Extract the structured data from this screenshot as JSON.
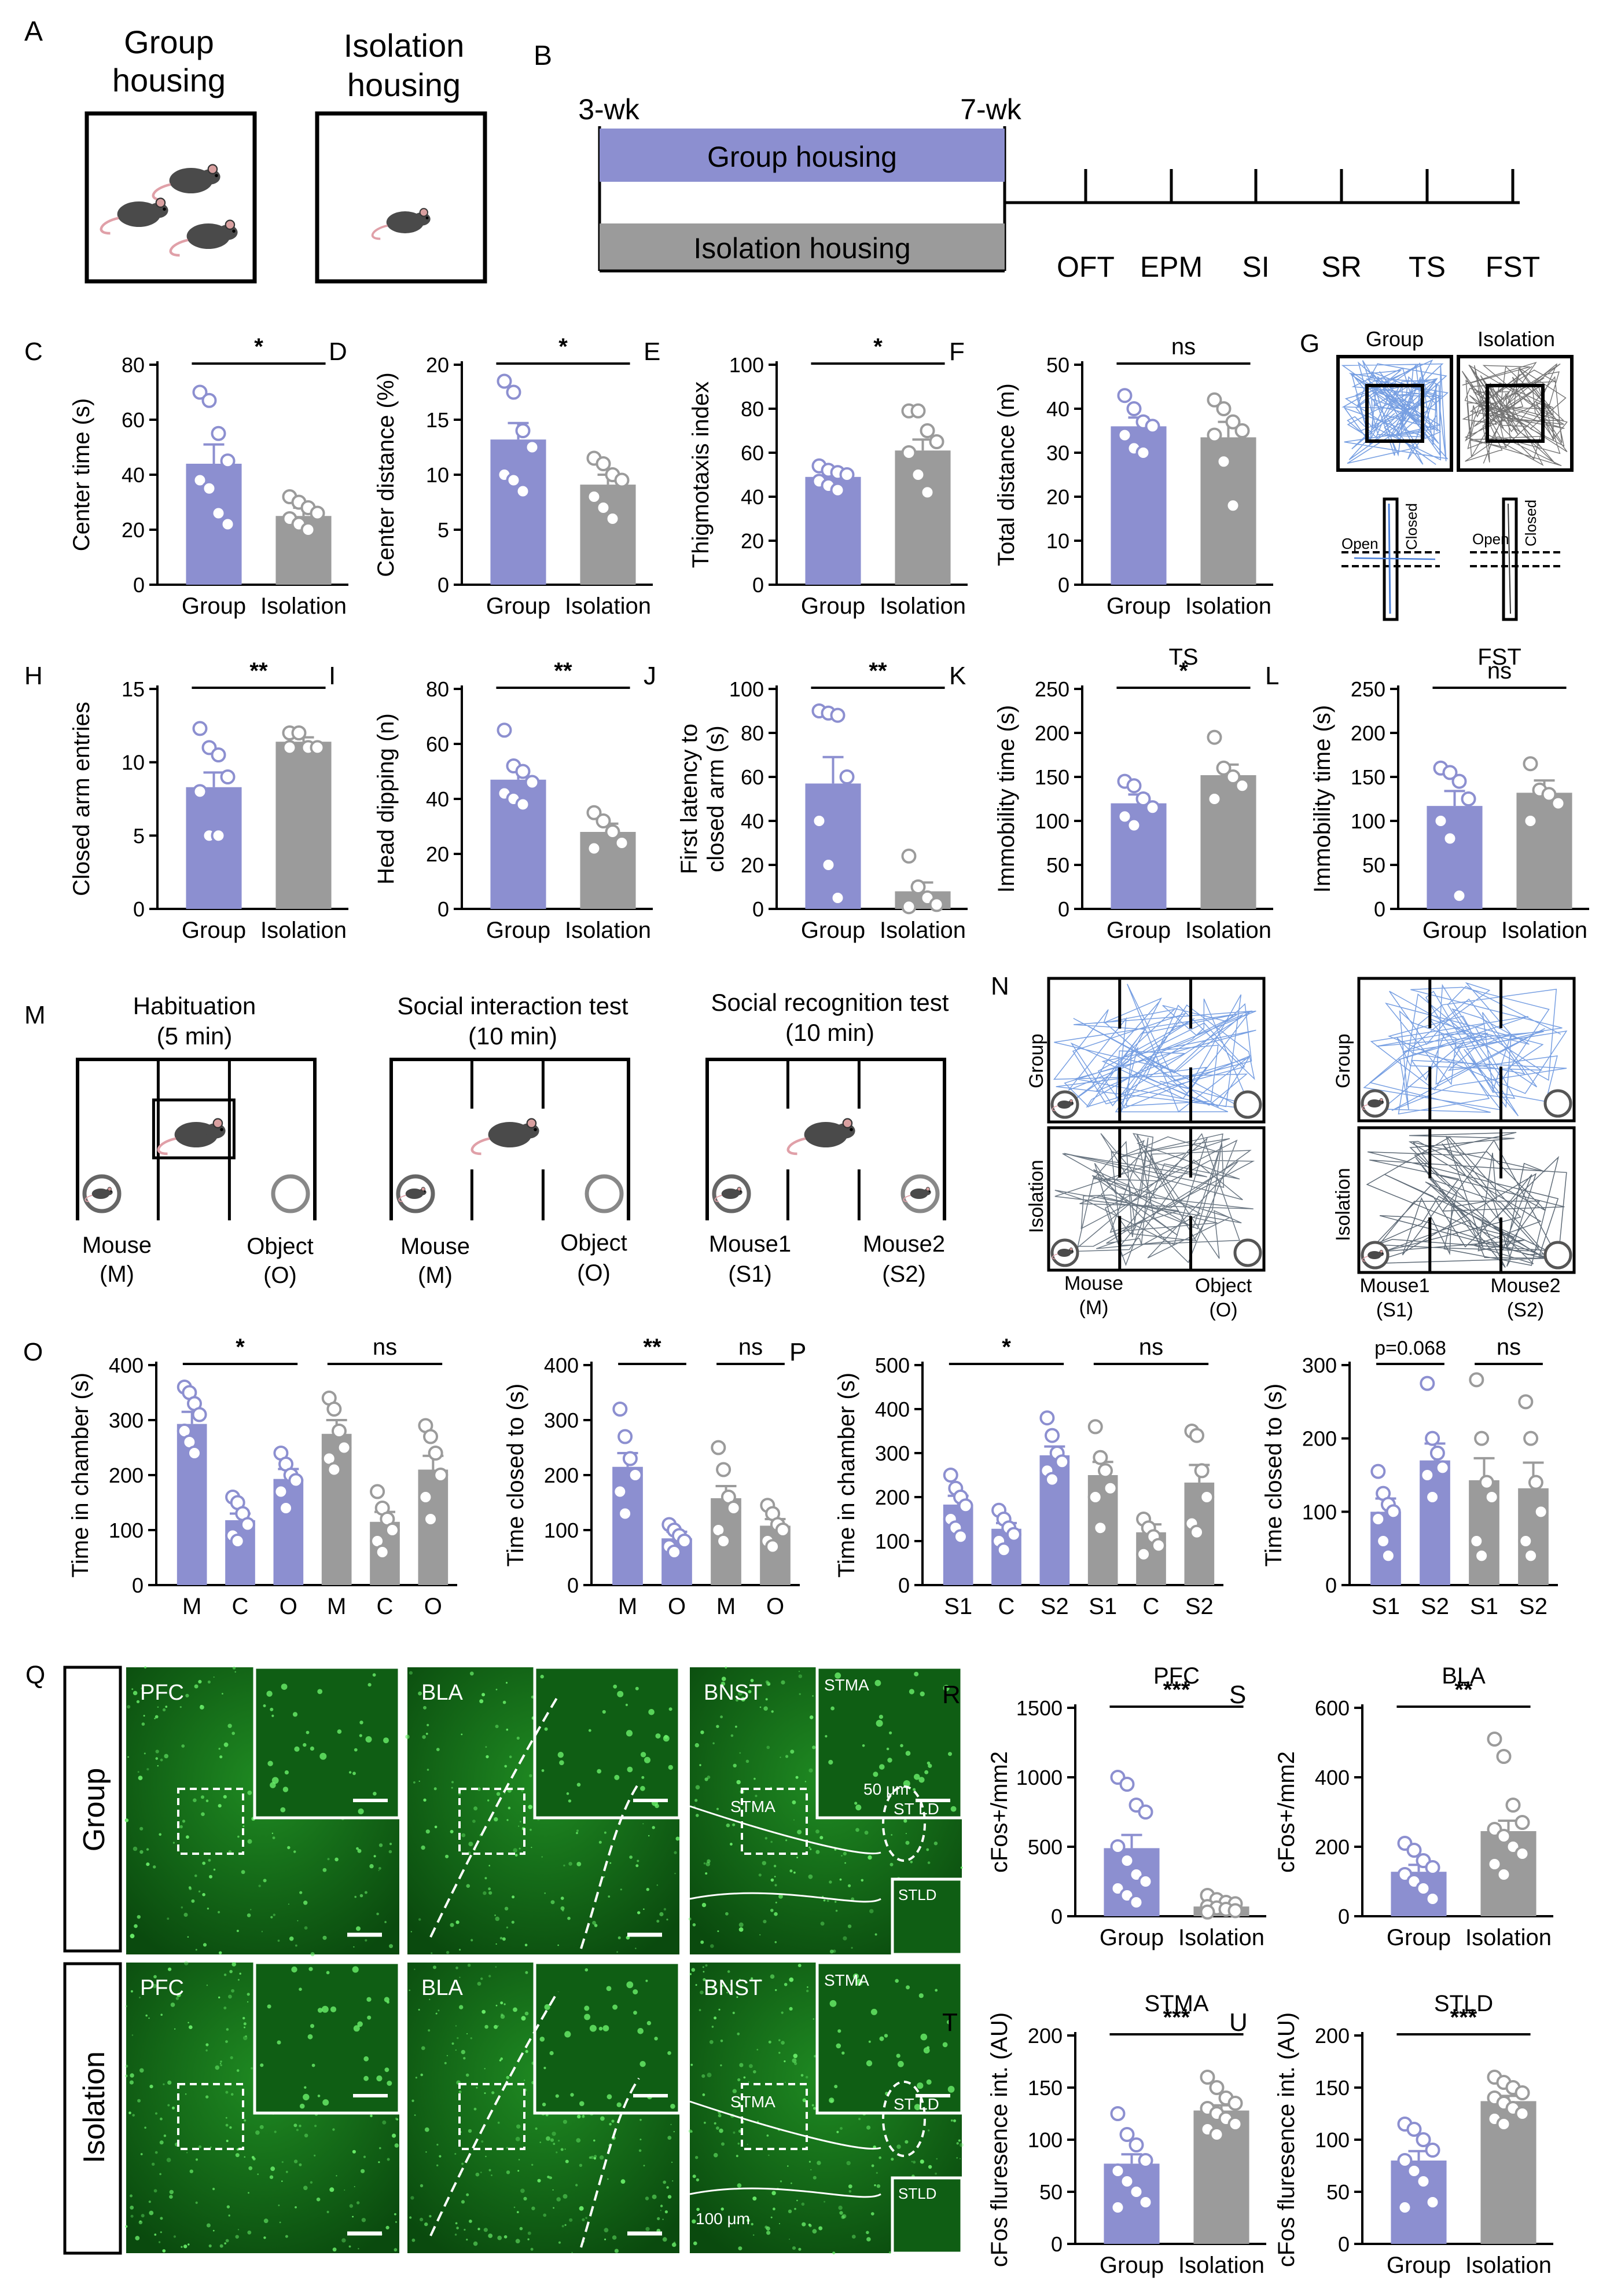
{
  "colors": {
    "group": "#8c8fd0",
    "isolation": "#9b9b9b",
    "group_dot": "#8c8fd0",
    "isolation_dot": "#9b9b9b",
    "micro_bg": "#0f5e14",
    "micro_cell": "#6af06a"
  },
  "panel_A": {
    "letter": "A",
    "group_label": [
      "Group",
      "housing"
    ],
    "isolation_label": [
      "Isolation",
      "housing"
    ]
  },
  "panel_B": {
    "letter": "B",
    "start": "3-wk",
    "end": "7-wk",
    "group_bar": "Group housing",
    "isolation_bar": "Isolation housing",
    "tests": [
      "OFT",
      "EPM",
      "SI",
      "SR",
      "TS",
      "FST"
    ]
  },
  "panel_G": {
    "letter": "G",
    "group": "Group",
    "isolation": "Isolation",
    "open": "Open",
    "closed": "Closed"
  },
  "panel_M": {
    "letter": "M",
    "titles": [
      [
        "Habituation",
        "(5 min)"
      ],
      [
        "Social interaction test",
        "(10 min)"
      ],
      [
        "Social recognition test",
        "(10 min)"
      ]
    ],
    "labels": [
      [
        "Mouse",
        "(M)"
      ],
      [
        "Object",
        "(O)"
      ],
      [
        "Mouse",
        "(M)"
      ],
      [
        "Object",
        "(O)"
      ],
      [
        "Mouse1",
        "(S1)"
      ],
      [
        "Mouse2",
        "(S2)"
      ]
    ]
  },
  "panel_N": {
    "letter": "N",
    "group": "Group",
    "isolation": "Isolation",
    "left_labels": [
      [
        "Mouse",
        "(M)"
      ],
      [
        "Object",
        "(O)"
      ]
    ],
    "right_labels": [
      [
        "Mouse1",
        "(S1)"
      ],
      [
        "Mouse2",
        "(S2)"
      ]
    ]
  },
  "panel_Q": {
    "letter": "Q",
    "rows": [
      "Group",
      "Isolation"
    ],
    "regions": [
      "PFC",
      "BLA",
      "BNST"
    ],
    "sub": [
      "STMA",
      "ST LD",
      "STLD"
    ],
    "scale_small": "50 μm",
    "scale_large": "100 μm"
  },
  "chart_data": [
    {
      "id": "C",
      "type": "bar",
      "categories": [
        "Group",
        "Isolation"
      ],
      "values": [
        44,
        25
      ],
      "ylabel": "Center time (s)",
      "ylim": [
        0,
        80
      ],
      "yticks": [
        0,
        20,
        40,
        60,
        80
      ],
      "sig": "*",
      "errors": [
        7,
        3
      ],
      "points": [
        [
          70,
          67,
          55,
          45,
          38,
          35,
          26,
          22
        ],
        [
          32,
          30,
          28,
          26,
          24,
          22,
          20
        ]
      ]
    },
    {
      "id": "D",
      "type": "bar",
      "categories": [
        "Group",
        "Isolation"
      ],
      "values": [
        13.2,
        9.1
      ],
      "ylabel": "Center distance (%)",
      "ylim": [
        0,
        20
      ],
      "yticks": [
        0,
        5,
        10,
        15,
        20
      ],
      "sig": "*",
      "errors": [
        1.5,
        0.9
      ],
      "points": [
        [
          18.5,
          17.5,
          14,
          12.5,
          10,
          9.5,
          8.5
        ],
        [
          11.5,
          11,
          10,
          9.5,
          8,
          7,
          6
        ]
      ]
    },
    {
      "id": "E",
      "type": "bar",
      "categories": [
        "Group",
        "Isolation"
      ],
      "values": [
        49,
        61
      ],
      "ylabel": "Thigmotaxis index",
      "ylim": [
        0,
        100
      ],
      "yticks": [
        0,
        20,
        40,
        60,
        80,
        100
      ],
      "sig": "*",
      "errors": [
        2,
        5
      ],
      "points": [
        [
          54,
          52,
          51,
          50,
          47,
          45,
          43
        ],
        [
          79,
          79,
          70,
          65,
          60,
          50,
          42
        ]
      ]
    },
    {
      "id": "F",
      "type": "bar",
      "categories": [
        "Group",
        "Isolation"
      ],
      "values": [
        36,
        33.5
      ],
      "ylabel": "Total distance (m)",
      "ylim": [
        0,
        50
      ],
      "yticks": [
        0,
        10,
        20,
        30,
        40,
        50
      ],
      "sig": "ns",
      "errors": [
        2,
        3.5
      ],
      "points": [
        [
          43,
          40,
          37,
          36,
          34,
          31,
          30
        ],
        [
          42,
          40,
          37,
          35,
          34,
          28,
          18
        ]
      ]
    },
    {
      "id": "H",
      "type": "bar",
      "categories": [
        "Group",
        "Isolation"
      ],
      "values": [
        8.3,
        11.4
      ],
      "ylabel": "Closed arm entries",
      "ylim": [
        0,
        15
      ],
      "yticks": [
        0,
        5,
        10,
        15
      ],
      "sig": "**",
      "errors": [
        1,
        0.3
      ],
      "points": [
        [
          12.3,
          11,
          10.5,
          9,
          8,
          5,
          5
        ],
        [
          12,
          12,
          11,
          11,
          11
        ]
      ]
    },
    {
      "id": "I",
      "type": "bar",
      "categories": [
        "Group",
        "Isolation"
      ],
      "values": [
        47,
        28
      ],
      "ylabel": "Head dipping (n)",
      "ylim": [
        0,
        80
      ],
      "yticks": [
        0,
        20,
        40,
        60,
        80
      ],
      "sig": "**",
      "errors": [
        4,
        3
      ],
      "points": [
        [
          65,
          52,
          50,
          46,
          42,
          40,
          38
        ],
        [
          35,
          32,
          28,
          24,
          22
        ]
      ]
    },
    {
      "id": "J",
      "type": "bar",
      "categories": [
        "Group",
        "Isolation"
      ],
      "values": [
        57,
        8
      ],
      "ylabel": "First latency to closed arm (s)",
      "ylim": [
        0,
        100
      ],
      "yticks": [
        0,
        20,
        40,
        60,
        80,
        100
      ],
      "sig": "**",
      "errors": [
        12,
        4
      ],
      "points": [
        [
          90,
          89,
          88,
          60,
          40,
          20,
          5
        ],
        [
          24,
          10,
          5,
          2,
          1
        ]
      ]
    },
    {
      "id": "K",
      "type": "bar",
      "title": "TS",
      "categories": [
        "Group",
        "Isolation"
      ],
      "values": [
        120,
        152
      ],
      "ylabel": "Immobility time (s)",
      "ylim": [
        0,
        250
      ],
      "yticks": [
        0,
        50,
        100,
        150,
        200,
        250
      ],
      "sig": "*",
      "errors": [
        10,
        12
      ],
      "points": [
        [
          145,
          140,
          125,
          115,
          105,
          95
        ],
        [
          195,
          160,
          150,
          140,
          125
        ]
      ]
    },
    {
      "id": "L",
      "type": "bar",
      "title": "FST",
      "categories": [
        "Group",
        "Isolation"
      ],
      "values": [
        117,
        132
      ],
      "ylabel": "Immobility time (s)",
      "ylim": [
        0,
        250
      ],
      "yticks": [
        0,
        50,
        100,
        150,
        200,
        250
      ],
      "sig": "ns",
      "errors": [
        17,
        14
      ],
      "points": [
        [
          160,
          155,
          145,
          125,
          100,
          80,
          15
        ],
        [
          165,
          135,
          130,
          120,
          100
        ]
      ]
    },
    {
      "id": "O1",
      "type": "bar",
      "categories": [
        "M",
        "C",
        "O",
        "M",
        "C",
        "O"
      ],
      "values": [
        293,
        118,
        193,
        275,
        115,
        210
      ],
      "ylabel": "Time in chamber (s)",
      "ylim": [
        0,
        400
      ],
      "yticks": [
        0,
        100,
        200,
        300,
        400
      ],
      "sig_groups": [
        {
          "label": "*",
          "from": 0,
          "to": 2
        },
        {
          "label": "ns",
          "from": 3,
          "to": 5
        }
      ],
      "errors": [
        22,
        12,
        18,
        25,
        18,
        25
      ],
      "bar_colors": [
        "group",
        "group",
        "group",
        "isolation",
        "isolation",
        "isolation"
      ],
      "points": [
        [
          360,
          350,
          330,
          310,
          280,
          260,
          240
        ],
        [
          160,
          150,
          130,
          110,
          90,
          80
        ],
        [
          240,
          220,
          200,
          190,
          170,
          140
        ],
        [
          340,
          320,
          280,
          250,
          230,
          210
        ],
        [
          170,
          140,
          120,
          100,
          80,
          60
        ],
        [
          290,
          270,
          240,
          200,
          160,
          120
        ]
      ]
    },
    {
      "id": "O2",
      "type": "bar",
      "categories": [
        "M",
        "O",
        "M",
        "O"
      ],
      "values": [
        215,
        85,
        158,
        108
      ],
      "ylabel": "Time closed to (s)",
      "ylim": [
        0,
        400
      ],
      "yticks": [
        0,
        100,
        200,
        300,
        400
      ],
      "sig_groups": [
        {
          "label": "**",
          "from": 0,
          "to": 1
        },
        {
          "label": "ns",
          "from": 2,
          "to": 3
        }
      ],
      "errors": [
        25,
        12,
        22,
        12
      ],
      "bar_colors": [
        "group",
        "group",
        "isolation",
        "isolation"
      ],
      "points": [
        [
          320,
          270,
          230,
          200,
          170,
          130
        ],
        [
          110,
          100,
          90,
          80,
          70,
          60
        ],
        [
          250,
          210,
          160,
          140,
          100,
          80
        ],
        [
          145,
          130,
          110,
          100,
          80,
          70
        ]
      ]
    },
    {
      "id": "P1",
      "type": "bar",
      "categories": [
        "S1",
        "C",
        "S2",
        "S1",
        "C",
        "S2"
      ],
      "values": [
        183,
        128,
        295,
        250,
        120,
        233
      ],
      "ylabel": "Time in chamber (s)",
      "ylim": [
        0,
        500
      ],
      "yticks": [
        0,
        100,
        200,
        300,
        400,
        500
      ],
      "sig_groups": [
        {
          "label": "*",
          "from": 0,
          "to": 2
        },
        {
          "label": "ns",
          "from": 3,
          "to": 5
        }
      ],
      "errors": [
        20,
        13,
        20,
        30,
        18,
        40
      ],
      "bar_colors": [
        "group",
        "group",
        "group",
        "isolation",
        "isolation",
        "isolation"
      ],
      "points": [
        [
          250,
          220,
          200,
          180,
          150,
          130,
          110
        ],
        [
          170,
          150,
          130,
          115,
          100,
          80
        ],
        [
          380,
          340,
          300,
          280,
          260,
          240
        ],
        [
          360,
          290,
          260,
          220,
          200,
          130
        ],
        [
          150,
          130,
          110,
          90,
          70
        ],
        [
          350,
          340,
          260,
          200,
          140,
          120
        ]
      ]
    },
    {
      "id": "P2",
      "type": "bar",
      "categories": [
        "S1",
        "S2",
        "S1",
        "S2"
      ],
      "values": [
        100,
        170,
        143,
        132
      ],
      "ylabel": "Time closed to (s)",
      "ylim": [
        0,
        300
      ],
      "yticks": [
        0,
        100,
        200,
        300
      ],
      "sig_groups": [
        {
          "label": "p=0.068",
          "from": 0,
          "to": 1
        },
        {
          "label": "ns",
          "from": 2,
          "to": 3
        }
      ],
      "errors": [
        18,
        23,
        30,
        35
      ],
      "bar_colors": [
        "group",
        "group",
        "isolation",
        "isolation"
      ],
      "points": [
        [
          155,
          125,
          110,
          100,
          90,
          60,
          40
        ],
        [
          275,
          200,
          180,
          160,
          150,
          120
        ],
        [
          280,
          200,
          140,
          120,
          60,
          40
        ],
        [
          250,
          200,
          140,
          100,
          60,
          40
        ]
      ]
    },
    {
      "id": "R",
      "type": "bar",
      "title": "PFC",
      "categories": [
        "Group",
        "Isolation"
      ],
      "values": [
        490,
        70
      ],
      "ylabel": "cFos+/mm2",
      "ylim": [
        0,
        1500
      ],
      "yticks": [
        0,
        500,
        1000,
        1500
      ],
      "sig": "***",
      "errors": [
        95,
        15
      ],
      "points": [
        [
          1000,
          950,
          800,
          750,
          500,
          400,
          300,
          250,
          200,
          150,
          100
        ],
        [
          150,
          120,
          100,
          90,
          70,
          60,
          50,
          40,
          30
        ]
      ]
    },
    {
      "id": "S",
      "type": "bar",
      "title": "BLA",
      "categories": [
        "Group",
        "Isolation"
      ],
      "values": [
        128,
        245
      ],
      "ylabel": "cFos+/mm2",
      "ylim": [
        0,
        600
      ],
      "yticks": [
        0,
        200,
        400,
        600
      ],
      "sig": "**",
      "errors": [
        20,
        30
      ],
      "points": [
        [
          210,
          190,
          160,
          140,
          120,
          100,
          80,
          50
        ],
        [
          510,
          460,
          320,
          270,
          250,
          230,
          200,
          180,
          150,
          120
        ]
      ]
    },
    {
      "id": "T",
      "type": "bar",
      "title": "STMA",
      "categories": [
        "Group",
        "Isolation"
      ],
      "values": [
        77,
        128
      ],
      "ylabel": "cFos fluresence int. (AU)",
      "ylim": [
        0,
        200
      ],
      "yticks": [
        0,
        50,
        100,
        150,
        200
      ],
      "sig": "***",
      "errors": [
        9,
        5
      ],
      "points": [
        [
          125,
          105,
          95,
          80,
          70,
          60,
          50,
          40,
          35
        ],
        [
          160,
          150,
          140,
          135,
          130,
          125,
          120,
          115,
          110,
          105
        ]
      ]
    },
    {
      "id": "U",
      "type": "bar",
      "title": "STLD",
      "categories": [
        "Group",
        "Isolation"
      ],
      "values": [
        80,
        137
      ],
      "ylabel": "cFos fluresence int. (AU)",
      "ylim": [
        0,
        200
      ],
      "yticks": [
        0,
        50,
        100,
        150,
        200
      ],
      "sig": "***",
      "errors": [
        9,
        5
      ],
      "points": [
        [
          115,
          110,
          100,
          90,
          80,
          70,
          60,
          40,
          35
        ],
        [
          160,
          155,
          150,
          145,
          140,
          135,
          130,
          125,
          120,
          115
        ]
      ]
    }
  ]
}
